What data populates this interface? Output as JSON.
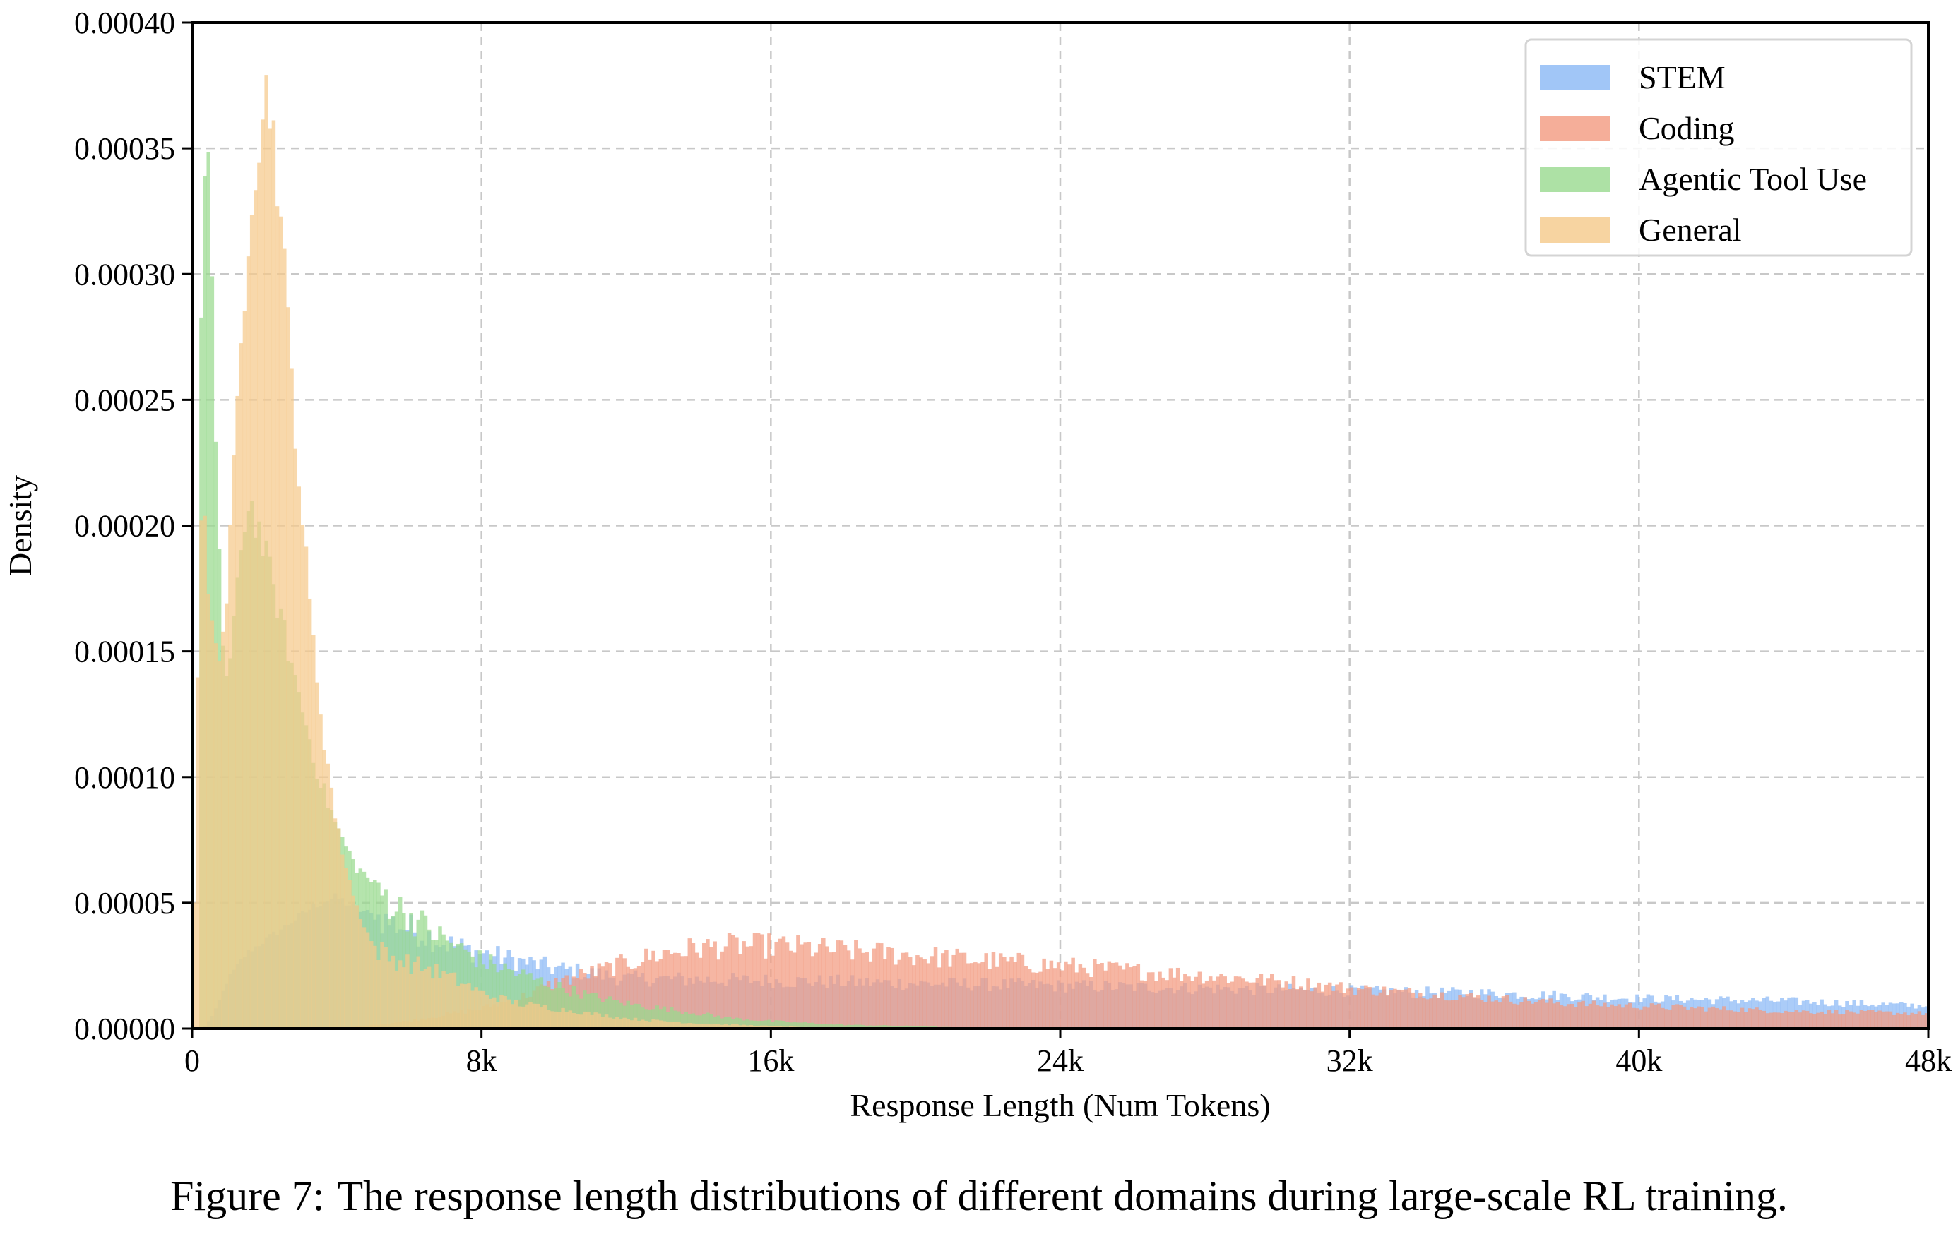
{
  "chart_data": {
    "type": "bar",
    "subtype": "overlaid-histogram",
    "title": "",
    "xlabel": "Response Length (Num Tokens)",
    "ylabel": "Density",
    "xlim": [
      0,
      48000
    ],
    "ylim": [
      0,
      0.0004
    ],
    "grid": true,
    "legend_position": "top-right",
    "x_ticks": [
      {
        "value": 0,
        "label": "0"
      },
      {
        "value": 8000,
        "label": "8k"
      },
      {
        "value": 16000,
        "label": "16k"
      },
      {
        "value": 24000,
        "label": "24k"
      },
      {
        "value": 32000,
        "label": "32k"
      },
      {
        "value": 40000,
        "label": "40k"
      },
      {
        "value": 48000,
        "label": "48k"
      }
    ],
    "y_ticks": [
      {
        "value": 0.0,
        "label": "0.00000"
      },
      {
        "value": 5e-05,
        "label": "0.00005"
      },
      {
        "value": 0.0001,
        "label": "0.00010"
      },
      {
        "value": 0.00015,
        "label": "0.00015"
      },
      {
        "value": 0.0002,
        "label": "0.00020"
      },
      {
        "value": 0.00025,
        "label": "0.00025"
      },
      {
        "value": 0.0003,
        "label": "0.00030"
      },
      {
        "value": 0.00035,
        "label": "0.00035"
      },
      {
        "value": 0.0004,
        "label": "0.00040"
      }
    ],
    "bin_width": 100,
    "series": [
      {
        "name": "STEM",
        "color": "#8ab8f5",
        "points": [
          [
            0,
            0
          ],
          [
            300,
            0
          ],
          [
            600,
            6e-06
          ],
          [
            1000,
            2e-05
          ],
          [
            1500,
            3e-05
          ],
          [
            2000,
            3.5e-05
          ],
          [
            2500,
            4e-05
          ],
          [
            3000,
            4.5e-05
          ],
          [
            3500,
            5e-05
          ],
          [
            4000,
            5.2e-05
          ],
          [
            4500,
            4.8e-05
          ],
          [
            5000,
            4.5e-05
          ],
          [
            5500,
            4.2e-05
          ],
          [
            6000,
            4e-05
          ],
          [
            6500,
            3.7e-05
          ],
          [
            7000,
            3.4e-05
          ],
          [
            7500,
            3.2e-05
          ],
          [
            8000,
            3e-05
          ],
          [
            9000,
            2.7e-05
          ],
          [
            10000,
            2.4e-05
          ],
          [
            11000,
            2.2e-05
          ],
          [
            12000,
            2e-05
          ],
          [
            16000,
            1.9e-05
          ],
          [
            20000,
            1.8e-05
          ],
          [
            24000,
            1.7e-05
          ],
          [
            28000,
            1.6e-05
          ],
          [
            32000,
            1.5e-05
          ],
          [
            36000,
            1.4e-05
          ],
          [
            40000,
            1.2e-05
          ],
          [
            44000,
            1.1e-05
          ],
          [
            48000,
            9e-06
          ]
        ]
      },
      {
        "name": "Coding",
        "color": "#f29a80",
        "points": [
          [
            0,
            0
          ],
          [
            4000,
            0
          ],
          [
            6000,
            3e-06
          ],
          [
            8000,
            8e-06
          ],
          [
            9000,
            1.2e-05
          ],
          [
            10000,
            1.8e-05
          ],
          [
            11000,
            2.2e-05
          ],
          [
            12000,
            2.6e-05
          ],
          [
            13000,
            3e-05
          ],
          [
            14000,
            3.2e-05
          ],
          [
            15000,
            3.3e-05
          ],
          [
            16000,
            3.3e-05
          ],
          [
            17000,
            3.2e-05
          ],
          [
            18000,
            3.1e-05
          ],
          [
            20000,
            2.9e-05
          ],
          [
            22000,
            2.7e-05
          ],
          [
            24000,
            2.5e-05
          ],
          [
            26000,
            2.3e-05
          ],
          [
            28000,
            2.1e-05
          ],
          [
            30000,
            1.9e-05
          ],
          [
            32000,
            1.6e-05
          ],
          [
            34000,
            1.4e-05
          ],
          [
            36000,
            1.2e-05
          ],
          [
            38000,
            1e-05
          ],
          [
            40000,
            9e-06
          ],
          [
            44000,
            7e-06
          ],
          [
            48000,
            6e-06
          ]
        ]
      },
      {
        "name": "Agentic Tool Use",
        "color": "#98d98e",
        "points": [
          [
            0,
            0
          ],
          [
            150,
            0
          ],
          [
            250,
            0.00028
          ],
          [
            400,
            0.00036
          ],
          [
            550,
            0.00029
          ],
          [
            700,
            0.00021
          ],
          [
            900,
            0.000135
          ],
          [
            1100,
            0.00015
          ],
          [
            1400,
            0.0002
          ],
          [
            1600,
            0.00021
          ],
          [
            2000,
            0.00019
          ],
          [
            2500,
            0.00016
          ],
          [
            3000,
            0.00013
          ],
          [
            3500,
            0.0001
          ],
          [
            4000,
            8e-05
          ],
          [
            4500,
            6.5e-05
          ],
          [
            5000,
            5.8e-05
          ],
          [
            5500,
            5e-05
          ],
          [
            6000,
            4.5e-05
          ],
          [
            6500,
            4e-05
          ],
          [
            7000,
            3.5e-05
          ],
          [
            7500,
            3.1e-05
          ],
          [
            8000,
            2.7e-05
          ],
          [
            9000,
            2.2e-05
          ],
          [
            10000,
            1.7e-05
          ],
          [
            11000,
            1.3e-05
          ],
          [
            12000,
            1e-05
          ],
          [
            13000,
            8e-06
          ],
          [
            14000,
            6e-06
          ],
          [
            15000,
            4e-06
          ],
          [
            16000,
            3e-06
          ],
          [
            18000,
            1.5e-06
          ],
          [
            20000,
            1e-06
          ],
          [
            22000,
            0
          ],
          [
            48000,
            0
          ]
        ]
      },
      {
        "name": "General",
        "color": "#f5c98a",
        "points": [
          [
            0,
            0
          ],
          [
            50,
            5e-05
          ],
          [
            120,
            0.00011
          ],
          [
            200,
            0.0002
          ],
          [
            300,
            0.00021
          ],
          [
            500,
            0.00016
          ],
          [
            800,
            0.00015
          ],
          [
            1000,
            0.00018
          ],
          [
            1300,
            0.00026
          ],
          [
            1600,
            0.00033
          ],
          [
            1900,
            0.00036
          ],
          [
            2100,
            0.000375
          ],
          [
            2300,
            0.00035
          ],
          [
            2600,
            0.00029
          ],
          [
            3000,
            0.00021
          ],
          [
            3300,
            0.00016
          ],
          [
            3600,
            0.00012
          ],
          [
            4000,
            8e-05
          ],
          [
            4500,
            5e-05
          ],
          [
            5000,
            3.3e-05
          ],
          [
            5500,
            2.8e-05
          ],
          [
            6000,
            2.6e-05
          ],
          [
            6500,
            2.4e-05
          ],
          [
            7000,
            2.1e-05
          ],
          [
            7500,
            1.8e-05
          ],
          [
            8000,
            1.4e-05
          ],
          [
            9000,
            1e-05
          ],
          [
            10000,
            8e-06
          ],
          [
            11000,
            6e-06
          ],
          [
            12000,
            4e-06
          ],
          [
            13000,
            3e-06
          ],
          [
            14000,
            2e-06
          ],
          [
            16000,
            1e-06
          ],
          [
            18000,
            0
          ],
          [
            48000,
            0
          ]
        ]
      }
    ]
  },
  "caption": {
    "label": "Figure 7:",
    "text": "The response length distributions of different domains during large-scale RL training."
  }
}
